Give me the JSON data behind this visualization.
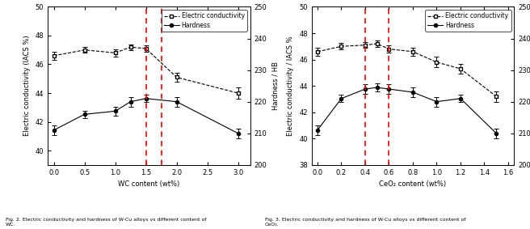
{
  "fig2": {
    "ec_x": [
      0.0,
      0.5,
      1.0,
      1.25,
      1.5,
      2.0,
      3.0
    ],
    "ec_y": [
      46.6,
      47.0,
      46.8,
      47.2,
      47.1,
      45.1,
      44.0
    ],
    "ec_yerr": [
      0.3,
      0.2,
      0.25,
      0.2,
      0.25,
      0.3,
      0.4
    ],
    "hd_x": [
      0.0,
      0.5,
      1.0,
      1.25,
      1.5,
      2.0,
      3.0
    ],
    "hd_y": [
      211,
      216,
      217,
      220,
      221,
      220,
      210
    ],
    "hd_yerr": [
      1.5,
      1.2,
      1.5,
      1.5,
      1.2,
      1.5,
      1.5
    ],
    "xlim": [
      -0.1,
      3.2
    ],
    "xticks": [
      0.0,
      0.5,
      1.0,
      1.5,
      2.0,
      2.5,
      3.0
    ],
    "xlabel": "WC content (wt%)",
    "ylabel_left": "Electric conductivity (IACS %)",
    "ylabel_right": "Hardness / HB",
    "ylim_left": [
      39,
      50
    ],
    "ylim_right": [
      200,
      250
    ],
    "yticks_left": [
      40,
      42,
      44,
      46,
      48,
      50
    ],
    "yticks_right": [
      200,
      210,
      220,
      230,
      240,
      250
    ],
    "legend_ec": "Electric conductivity",
    "legend_hd": "Hardness",
    "red_vline1": 1.5,
    "red_vline2": 1.75
  },
  "fig3": {
    "ec_x": [
      0.0,
      0.2,
      0.4,
      0.5,
      0.6,
      0.8,
      1.0,
      1.2,
      1.5
    ],
    "ec_y": [
      46.6,
      47.0,
      47.1,
      47.2,
      46.8,
      46.6,
      45.8,
      45.3,
      43.2
    ],
    "ec_yerr": [
      0.3,
      0.25,
      0.2,
      0.25,
      0.3,
      0.3,
      0.4,
      0.35,
      0.4
    ],
    "hd_x": [
      0.0,
      0.2,
      0.4,
      0.5,
      0.6,
      0.8,
      1.0,
      1.2,
      1.5
    ],
    "hd_y": [
      211,
      221,
      224,
      224.5,
      224,
      223,
      220,
      221,
      210
    ],
    "hd_yerr": [
      1.5,
      1.2,
      1.5,
      1.2,
      1.5,
      1.5,
      1.5,
      1.2,
      1.5
    ],
    "xlim": [
      -0.05,
      1.65
    ],
    "xticks": [
      0.0,
      0.2,
      0.4,
      0.6,
      0.8,
      1.0,
      1.2,
      1.4,
      1.6
    ],
    "xlabel": "CeO₂ content (wt%)",
    "ylabel_left": "Electric conductivity / IACS %",
    "ylabel_right": "Hardness /HB",
    "ylim_left": [
      38,
      50
    ],
    "ylim_right": [
      200,
      250
    ],
    "yticks_left": [
      38,
      40,
      42,
      44,
      46,
      48,
      50
    ],
    "yticks_right": [
      200,
      210,
      220,
      230,
      240,
      250
    ],
    "legend_ec": "Electric conductivity",
    "legend_hd": "Hardness",
    "red_vline1": 0.4,
    "red_vline2": 0.6
  },
  "bg_color": "#ffffff",
  "caption2": "Fig. 2. Electric conductivity and hardness of W-Cu alloys vs different content of\nWC.",
  "caption3": "Fig. 3. Electric conductivity and hardness of W-Cu alloys vs different content of\nCeO₂."
}
